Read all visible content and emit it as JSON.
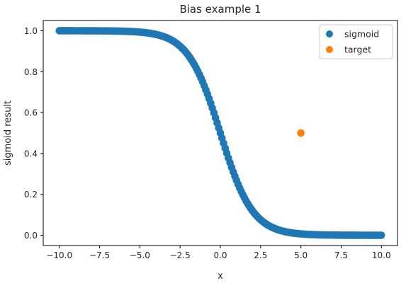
{
  "chart_data": {
    "type": "scatter",
    "title": "Bias example 1",
    "xlabel": "x",
    "ylabel": "sigmoid result",
    "xlim": [
      -11,
      11
    ],
    "ylim": [
      -0.05,
      1.05
    ],
    "x_ticks": [
      -10.0,
      -7.5,
      -5.0,
      -2.5,
      0.0,
      2.5,
      5.0,
      7.5,
      10.0
    ],
    "x_tick_labels": [
      "−10.0",
      "−7.5",
      "−5.0",
      "−2.5",
      "0.0",
      "2.5",
      "5.0",
      "7.5",
      "10.0"
    ],
    "y_ticks": [
      0.0,
      0.2,
      0.4,
      0.6,
      0.8,
      1.0
    ],
    "y_tick_labels": [
      "0.0",
      "0.2",
      "0.4",
      "0.6",
      "0.8",
      "1.0"
    ],
    "grid": false,
    "legend_position": "top-right",
    "series": [
      {
        "name": "sigmoid",
        "color": "#1f77b4",
        "function": "1 / (1 + exp(x))",
        "x_start": -10,
        "x_end": 10,
        "point_count": 201
      },
      {
        "name": "target",
        "color": "#ff7f0e",
        "x": [
          5.0
        ],
        "y": [
          0.5
        ]
      }
    ]
  }
}
